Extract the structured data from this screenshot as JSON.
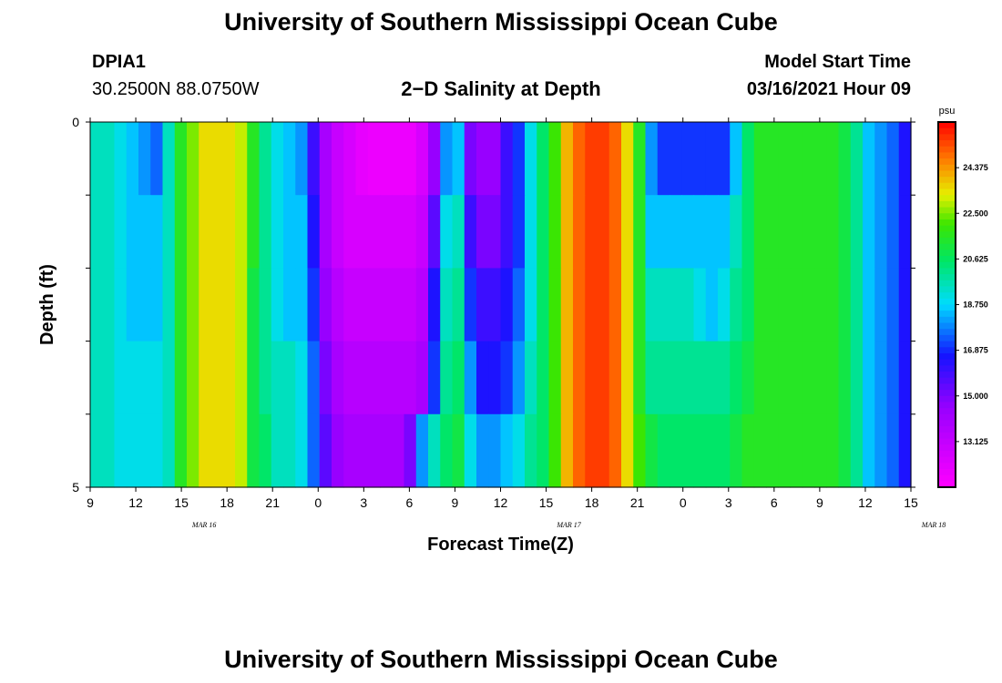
{
  "header": {
    "title": "University of Southern Mississippi Ocean Cube",
    "station": "DPIA1",
    "coords": "30.2500N 88.0750W",
    "plot_title": "2−D Salinity at Depth",
    "model_start_label": "Model Start Time",
    "model_start_value": "03/16/2021 Hour 09"
  },
  "footer": {
    "title": "University of Southern Mississippi Ocean Cube"
  },
  "chart_data": {
    "type": "heatmap",
    "title": "2-D Salinity at Depth",
    "xlabel": "Forecast Time(Z)",
    "ylabel": "Depth (ft)",
    "ylim": [
      0,
      5
    ],
    "y_ticks": [
      "0",
      "5"
    ],
    "x_ticks": [
      "9",
      "12",
      "15",
      "18",
      "21",
      "0",
      "3",
      "6",
      "9",
      "12",
      "15",
      "18",
      "21",
      "0",
      "3",
      "6",
      "9",
      "12",
      "15"
    ],
    "date_labels": [
      {
        "label": "MAR 16",
        "hour_index": 7.5
      },
      {
        "label": "MAR 17",
        "hour_index": 31.5
      },
      {
        "label": "MAR 18",
        "hour_index": 55.5
      }
    ],
    "hours_span": 54,
    "colorbar": {
      "unit": "psu",
      "min": 11.25,
      "max": 26.25,
      "ticks": [
        "24.375",
        "22.500",
        "20.625",
        "18.750",
        "16.875",
        "15.000",
        "13.125"
      ]
    },
    "depth_rows": 5,
    "salinity_psu": [
      [
        19.5,
        19.5,
        19.0,
        18.5,
        18.0,
        17.5,
        19.5,
        21.5,
        22.5,
        23.5,
        23.5,
        23.5,
        23.0,
        21.5,
        20.0,
        19.0,
        18.5,
        18.0,
        16.0,
        14.0,
        13.0,
        12.5,
        12.0,
        11.8,
        11.8,
        11.8,
        11.8,
        12.5,
        14.5,
        18.0,
        18.5,
        15.0,
        14.5,
        14.5,
        16.0,
        17.0,
        19.0,
        20.5,
        22.0,
        24.0,
        25.0,
        25.5,
        25.5,
        25.0,
        23.5,
        21.5,
        18.0,
        17.0,
        17.0,
        17.0,
        17.0,
        17.0,
        17.0,
        18.5,
        20.5,
        21.5,
        21.5,
        21.5,
        21.5,
        21.5,
        21.5,
        21.5,
        21.0,
        20.0,
        18.5,
        18.0,
        17.5,
        16.5
      ],
      [
        19.5,
        19.5,
        19.0,
        18.5,
        18.5,
        18.5,
        19.5,
        21.5,
        22.5,
        23.5,
        23.5,
        23.5,
        23.0,
        21.5,
        20.0,
        19.0,
        18.5,
        18.5,
        16.5,
        14.0,
        13.0,
        12.5,
        12.5,
        12.5,
        12.5,
        12.5,
        12.5,
        13.0,
        15.5,
        19.0,
        19.5,
        16.0,
        15.0,
        15.0,
        16.0,
        17.0,
        19.0,
        20.5,
        22.0,
        24.0,
        25.0,
        25.5,
        25.5,
        25.0,
        23.5,
        21.5,
        18.5,
        18.5,
        18.5,
        18.5,
        18.5,
        18.5,
        18.5,
        19.5,
        20.5,
        21.5,
        21.5,
        21.5,
        21.5,
        21.5,
        21.5,
        21.5,
        21.0,
        20.0,
        18.5,
        18.0,
        17.5,
        16.5
      ],
      [
        19.5,
        19.5,
        19.0,
        18.5,
        18.5,
        18.5,
        19.5,
        21.5,
        22.5,
        23.5,
        23.5,
        23.5,
        23.0,
        21.0,
        20.0,
        19.0,
        18.5,
        18.5,
        17.0,
        14.5,
        13.5,
        13.0,
        13.0,
        13.0,
        13.0,
        13.0,
        13.0,
        13.5,
        16.5,
        19.5,
        20.0,
        17.0,
        16.0,
        16.0,
        16.5,
        17.5,
        19.0,
        20.5,
        22.0,
        24.0,
        25.0,
        25.5,
        25.5,
        25.0,
        23.5,
        21.5,
        19.5,
        19.5,
        19.5,
        19.5,
        19.0,
        18.5,
        19.0,
        20.0,
        20.5,
        21.5,
        21.5,
        21.5,
        21.5,
        21.5,
        21.5,
        21.5,
        21.0,
        20.0,
        18.5,
        18.0,
        17.5,
        16.5
      ],
      [
        19.5,
        19.5,
        19.0,
        19.0,
        19.0,
        19.0,
        19.5,
        21.5,
        22.5,
        23.5,
        23.5,
        23.5,
        23.0,
        21.0,
        20.0,
        19.5,
        19.5,
        19.0,
        17.5,
        15.0,
        14.0,
        13.5,
        13.5,
        13.5,
        13.5,
        13.5,
        13.5,
        14.0,
        17.0,
        20.0,
        20.5,
        18.0,
        16.5,
        16.5,
        17.0,
        18.0,
        19.5,
        20.5,
        22.0,
        24.0,
        25.0,
        25.5,
        25.5,
        25.0,
        23.5,
        21.5,
        20.0,
        20.0,
        20.0,
        20.0,
        20.0,
        20.0,
        20.0,
        20.5,
        21.0,
        21.5,
        21.5,
        21.5,
        21.5,
        21.5,
        21.5,
        21.5,
        21.0,
        20.0,
        18.5,
        18.0,
        17.5,
        16.5
      ],
      [
        19.5,
        19.5,
        19.0,
        19.0,
        19.0,
        19.0,
        19.5,
        21.5,
        22.5,
        23.5,
        23.5,
        23.5,
        23.0,
        21.0,
        20.5,
        19.5,
        19.5,
        19.0,
        17.5,
        15.5,
        14.5,
        14.0,
        14.0,
        14.0,
        14.0,
        14.0,
        15.0,
        18.0,
        19.5,
        20.5,
        21.0,
        19.0,
        18.0,
        18.0,
        18.5,
        19.0,
        20.0,
        20.5,
        22.0,
        24.0,
        25.0,
        25.5,
        25.5,
        25.0,
        23.5,
        22.0,
        21.0,
        20.5,
        20.5,
        20.5,
        20.5,
        20.5,
        20.5,
        21.0,
        21.5,
        21.5,
        21.5,
        21.5,
        21.5,
        21.5,
        21.5,
        21.5,
        21.0,
        20.0,
        18.5,
        18.0,
        17.5,
        16.5
      ]
    ]
  }
}
